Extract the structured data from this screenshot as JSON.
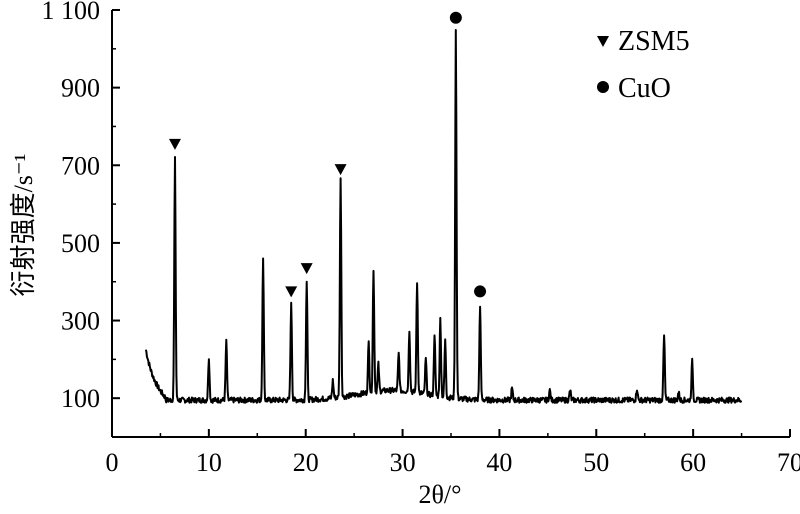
{
  "chart_data": {
    "type": "line",
    "title": "",
    "xlabel": "2θ/°",
    "ylabel": "衍射强度/s⁻¹",
    "xlim": [
      0,
      70
    ],
    "ylim": [
      0,
      1100
    ],
    "x_ticks": [
      "0",
      "10",
      "20",
      "30",
      "40",
      "50",
      "60",
      "70"
    ],
    "y_ticks": [
      {
        "value": 100,
        "label": "100"
      },
      {
        "value": 300,
        "label": "300"
      },
      {
        "value": 500,
        "label": "500"
      },
      {
        "value": 700,
        "label": "700"
      },
      {
        "value": 900,
        "label": "900"
      },
      {
        "value": 1100,
        "label": "1 100"
      }
    ],
    "legend": [
      {
        "marker": "triangle-down",
        "label": "ZSM5"
      },
      {
        "marker": "circle",
        "label": "CuO"
      }
    ],
    "legend_position": "top-right",
    "series": [
      {
        "line_color": "#000000",
        "baseline": 95,
        "x_range": [
          3.5,
          65
        ],
        "peaks": [
          {
            "x": 6.5,
            "y": 715
          },
          {
            "x": 10.0,
            "y": 205
          },
          {
            "x": 11.8,
            "y": 245
          },
          {
            "x": 15.6,
            "y": 455
          },
          {
            "x": 18.5,
            "y": 340
          },
          {
            "x": 20.1,
            "y": 400
          },
          {
            "x": 22.8,
            "y": 140
          },
          {
            "x": 23.6,
            "y": 655
          },
          {
            "x": 26.5,
            "y": 225
          },
          {
            "x": 27.0,
            "y": 405
          },
          {
            "x": 27.5,
            "y": 165
          },
          {
            "x": 29.6,
            "y": 190
          },
          {
            "x": 30.7,
            "y": 255
          },
          {
            "x": 31.5,
            "y": 380
          },
          {
            "x": 32.4,
            "y": 185
          },
          {
            "x": 33.3,
            "y": 255
          },
          {
            "x": 33.9,
            "y": 295
          },
          {
            "x": 34.4,
            "y": 240
          },
          {
            "x": 35.5,
            "y": 1045
          },
          {
            "x": 38.0,
            "y": 340
          },
          {
            "x": 41.3,
            "y": 125
          },
          {
            "x": 45.2,
            "y": 120
          },
          {
            "x": 47.3,
            "y": 120
          },
          {
            "x": 54.2,
            "y": 125
          },
          {
            "x": 57.0,
            "y": 260
          },
          {
            "x": 58.5,
            "y": 115
          },
          {
            "x": 59.9,
            "y": 195
          }
        ]
      }
    ],
    "annotations": [
      {
        "marker": "triangle-down",
        "x": 6.5,
        "y": 755
      },
      {
        "marker": "triangle-down",
        "x": 18.5,
        "y": 375
      },
      {
        "marker": "triangle-down",
        "x": 20.1,
        "y": 435
      },
      {
        "marker": "triangle-down",
        "x": 23.6,
        "y": 690
      },
      {
        "marker": "circle",
        "x": 35.5,
        "y": 1080
      },
      {
        "marker": "circle",
        "x": 38.0,
        "y": 375
      }
    ]
  }
}
